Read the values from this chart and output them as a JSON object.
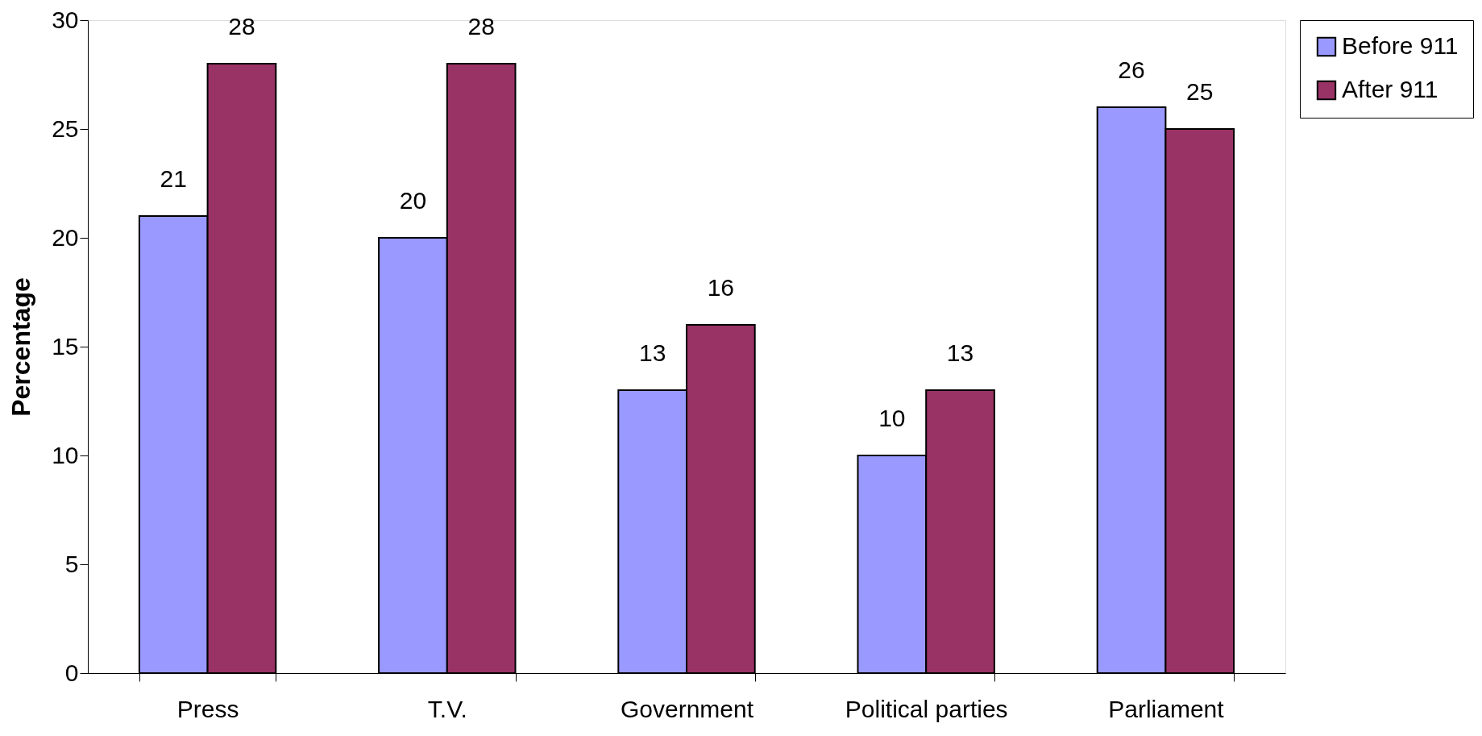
{
  "chart_data": {
    "type": "bar",
    "ylabel": "Percentage",
    "categories": [
      "Press",
      "T.V.",
      "Government",
      "Political parties",
      "Parliament"
    ],
    "series": [
      {
        "name": "Before 911",
        "color": "#9999ff",
        "values": [
          21,
          20,
          13,
          10,
          26
        ]
      },
      {
        "name": "After 911",
        "color": "#993366",
        "values": [
          28,
          28,
          16,
          13,
          25
        ]
      }
    ],
    "ylim": [
      0,
      30
    ],
    "yticks": [
      0,
      5,
      10,
      15,
      20,
      25,
      30
    ],
    "grid": false,
    "legend": "right",
    "data_labels": true
  }
}
